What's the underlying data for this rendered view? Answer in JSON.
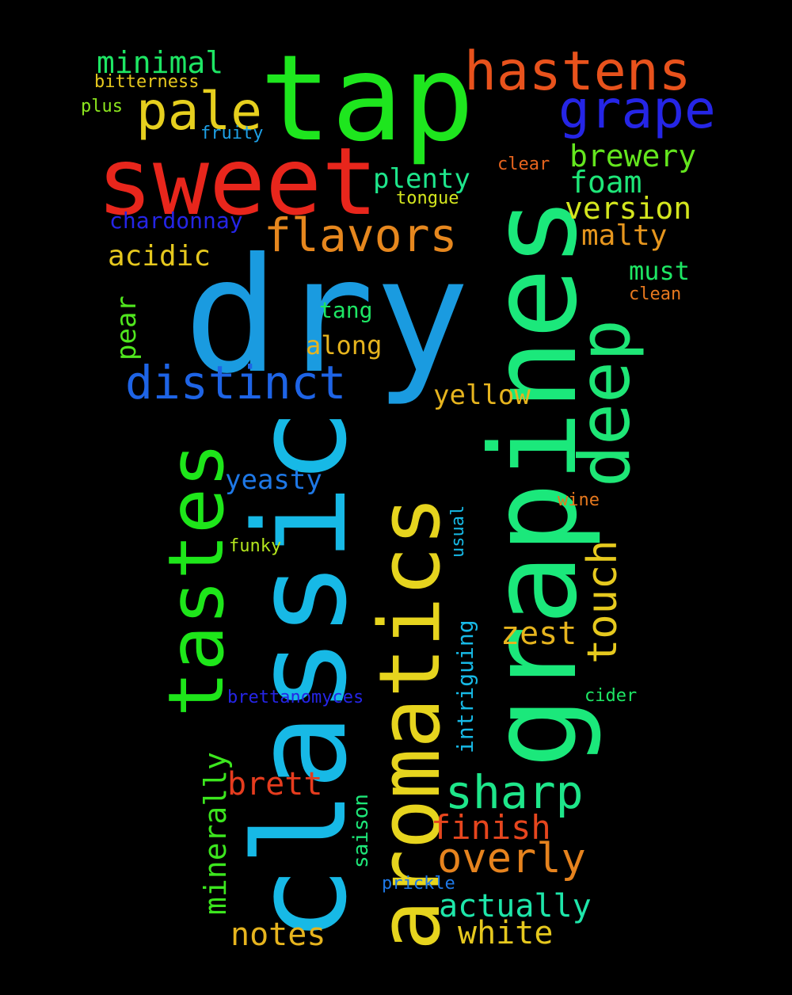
{
  "words": [
    {
      "text": "dry",
      "color": "#1a9be0"
    },
    {
      "text": "classic",
      "color": "#17b9e6"
    },
    {
      "text": "grapines",
      "color": "#1be87b"
    },
    {
      "text": "aromatics",
      "color": "#e6d41e"
    },
    {
      "text": "tap",
      "color": "#1ee61e"
    },
    {
      "text": "sweet",
      "color": "#e8261c"
    },
    {
      "text": "tastes",
      "color": "#1ee61a"
    },
    {
      "text": "deep",
      "color": "#1ee676"
    },
    {
      "text": "hastens",
      "color": "#e8521c"
    },
    {
      "text": "grape",
      "color": "#2525e6"
    },
    {
      "text": "pale",
      "color": "#e6cf1e"
    },
    {
      "text": "distinct",
      "color": "#1e64e6"
    },
    {
      "text": "flavors",
      "color": "#e6871e"
    },
    {
      "text": "touch",
      "color": "#e6c91e"
    },
    {
      "text": "sharp",
      "color": "#1ee68a"
    },
    {
      "text": "overly",
      "color": "#e6831e"
    },
    {
      "text": "minimal",
      "color": "#1ee664"
    },
    {
      "text": "brewery",
      "color": "#64e61e"
    },
    {
      "text": "foam",
      "color": "#1ee678"
    },
    {
      "text": "version",
      "color": "#d4e61e"
    },
    {
      "text": "plenty",
      "color": "#1ee68c"
    },
    {
      "text": "malty",
      "color": "#e6961e"
    },
    {
      "text": "acidic",
      "color": "#e6c81e"
    },
    {
      "text": "must",
      "color": "#1ee664"
    },
    {
      "text": "yellow",
      "color": "#e6b41e"
    },
    {
      "text": "along",
      "color": "#e6b41e"
    },
    {
      "text": "tang",
      "color": "#1ee664"
    },
    {
      "text": "pear",
      "color": "#50e61e"
    },
    {
      "text": "yeasty",
      "color": "#1e78e6"
    },
    {
      "text": "zest",
      "color": "#e6b41e"
    },
    {
      "text": "brett",
      "color": "#e63c1e"
    },
    {
      "text": "finish",
      "color": "#e6461e"
    },
    {
      "text": "actually",
      "color": "#1ee6aa"
    },
    {
      "text": "white",
      "color": "#e6c81e"
    },
    {
      "text": "notes",
      "color": "#e6b41e"
    },
    {
      "text": "minerally",
      "color": "#3ce61e"
    },
    {
      "text": "saison",
      "color": "#1ee678"
    },
    {
      "text": "intriguing",
      "color": "#17b9e6"
    },
    {
      "text": "usual",
      "color": "#17b9e6"
    },
    {
      "text": "chardonnay",
      "color": "#2525e6"
    },
    {
      "text": "bitterness",
      "color": "#e6c81e"
    },
    {
      "text": "plus",
      "color": "#8ce61e"
    },
    {
      "text": "fruity",
      "color": "#1ea0e6"
    },
    {
      "text": "clear",
      "color": "#e6641e"
    },
    {
      "text": "tongue",
      "color": "#d4e61e"
    },
    {
      "text": "clean",
      "color": "#e6781e"
    },
    {
      "text": "wine",
      "color": "#e6781e"
    },
    {
      "text": "funky",
      "color": "#b4e61e"
    },
    {
      "text": "brettanomyces",
      "color": "#2525e6"
    },
    {
      "text": "cider",
      "color": "#1ee664"
    },
    {
      "text": "prickle",
      "color": "#1e78e6"
    }
  ]
}
